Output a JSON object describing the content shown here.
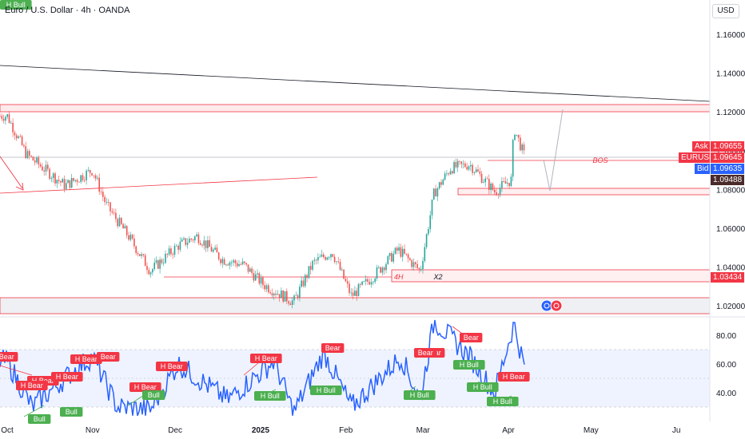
{
  "header": {
    "symbol_title": "Euro / U.S. Dollar · 4h · OANDA",
    "currency_button": "USD"
  },
  "price_axis": {
    "ticks": [
      "1.16000",
      "1.14000",
      "1.12000",
      "1.10000",
      "1.08000",
      "1.06000",
      "1.04000",
      "1.02000"
    ],
    "tags": {
      "ask_label": "Ask",
      "ask_value": "1.09655",
      "symbol_label": "EURUSD",
      "symbol_value": "1.09645",
      "bid_label": "Bid",
      "bid_value": "1.09635",
      "line_value": "1.09488",
      "zone_value": "1.03434"
    }
  },
  "osc_axis": {
    "ticks": [
      "80.00",
      "60.00",
      "40.00"
    ]
  },
  "time_axis": {
    "labels": [
      "Oct",
      "Nov",
      "Dec",
      "2025",
      "Feb",
      "Mar",
      "Apr",
      "May",
      "Ju"
    ]
  },
  "annotations": {
    "bos": "BOS",
    "tf_4h": "4H",
    "x2": "X2"
  },
  "divergence_labels": [
    {
      "text": "Bear",
      "kind": "bear"
    },
    {
      "text": "H Bear",
      "kind": "bear"
    },
    {
      "text": "H Bear",
      "kind": "bear"
    },
    {
      "text": "H Bear",
      "kind": "bear"
    },
    {
      "text": "H Bear",
      "kind": "bear"
    },
    {
      "text": "Bear",
      "kind": "bear"
    },
    {
      "text": "H Bear",
      "kind": "bear"
    },
    {
      "text": "H Bear",
      "kind": "bear"
    },
    {
      "text": "H Bear",
      "kind": "bear"
    },
    {
      "text": "Bear",
      "kind": "bear"
    },
    {
      "text": "Bear",
      "kind": "bear"
    },
    {
      "text": "Bear",
      "kind": "bear"
    },
    {
      "text": "Bear",
      "kind": "bear"
    },
    {
      "text": "H Bear",
      "kind": "bear"
    },
    {
      "text": "Bull",
      "kind": "bull"
    },
    {
      "text": "Bull",
      "kind": "bull"
    },
    {
      "text": "Bull",
      "kind": "bull"
    },
    {
      "text": "H Bull",
      "kind": "bull"
    },
    {
      "text": "H Bull",
      "kind": "bull"
    },
    {
      "text": "H Bull",
      "kind": "bull"
    },
    {
      "text": "H Bull",
      "kind": "bull"
    },
    {
      "text": "H Bull",
      "kind": "bull"
    },
    {
      "text": "H Bull",
      "kind": "bull"
    },
    {
      "text": "H Bull",
      "kind": "bull"
    }
  ],
  "colors": {
    "bull_candle": "#26a69a",
    "bear_candle": "#ef5350",
    "rsi_line": "#2962ff",
    "bear_label": "#f23645",
    "bull_label": "#4caf50",
    "zone": "#f23645"
  },
  "chart_data": [
    {
      "type": "candlestick",
      "title": "Euro / U.S. Dollar · 4h · OANDA",
      "ylim": [
        1.0135,
        1.1765
      ],
      "x_labels": [
        "Oct",
        "Nov",
        "Dec",
        "2025",
        "Feb",
        "Mar",
        "Apr",
        "May",
        "Ju"
      ],
      "approx_close_path": [
        {
          "date": "2024-10-01",
          "close": 1.118
        },
        {
          "date": "2024-10-08",
          "close": 1.098
        },
        {
          "date": "2024-10-15",
          "close": 1.09
        },
        {
          "date": "2024-10-22",
          "close": 1.082
        },
        {
          "date": "2024-11-01",
          "close": 1.09
        },
        {
          "date": "2024-11-06",
          "close": 1.072
        },
        {
          "date": "2024-11-14",
          "close": 1.056
        },
        {
          "date": "2024-11-22",
          "close": 1.038
        },
        {
          "date": "2024-12-02",
          "close": 1.051
        },
        {
          "date": "2024-12-09",
          "close": 1.056
        },
        {
          "date": "2024-12-18",
          "close": 1.044
        },
        {
          "date": "2024-12-26",
          "close": 1.041
        },
        {
          "date": "2025-01-02",
          "close": 1.031
        },
        {
          "date": "2025-01-13",
          "close": 1.022
        },
        {
          "date": "2025-01-20",
          "close": 1.042
        },
        {
          "date": "2025-01-27",
          "close": 1.048
        },
        {
          "date": "2025-02-03",
          "close": 1.025
        },
        {
          "date": "2025-02-10",
          "close": 1.034
        },
        {
          "date": "2025-02-20",
          "close": 1.049
        },
        {
          "date": "2025-02-28",
          "close": 1.038
        },
        {
          "date": "2025-03-05",
          "close": 1.078
        },
        {
          "date": "2025-03-11",
          "close": 1.091
        },
        {
          "date": "2025-03-18",
          "close": 1.093
        },
        {
          "date": "2025-03-27",
          "close": 1.079
        },
        {
          "date": "2025-04-02",
          "close": 1.085
        },
        {
          "date": "2025-04-03",
          "close": 1.112
        },
        {
          "date": "2025-04-07",
          "close": 1.0964
        }
      ],
      "horizontal_levels": [
        1.1215,
        1.0964,
        1.08,
        1.078,
        1.0385,
        1.034,
        1.0225,
        1.0155
      ],
      "projection": [
        {
          "date": "2025-04-08",
          "price": 1.08
        },
        {
          "date": "2025-04-17",
          "price": 1.122
        }
      ]
    },
    {
      "type": "line",
      "name": "RSI",
      "ylim": [
        23,
        98
      ],
      "yticks": [
        80,
        60,
        40
      ],
      "band": [
        30,
        70
      ],
      "approx_values": [
        {
          "date": "2024-10-01",
          "value": 62
        },
        {
          "date": "2024-10-10",
          "value": 30
        },
        {
          "date": "2024-10-25",
          "value": 55
        },
        {
          "date": "2024-11-01",
          "value": 65
        },
        {
          "date": "2024-11-10",
          "value": 30
        },
        {
          "date": "2024-11-22",
          "value": 28
        },
        {
          "date": "2024-12-02",
          "value": 60
        },
        {
          "date": "2024-12-20",
          "value": 35
        },
        {
          "date": "2025-01-06",
          "value": 62
        },
        {
          "date": "2025-01-13",
          "value": 26
        },
        {
          "date": "2025-01-24",
          "value": 68
        },
        {
          "date": "2025-02-03",
          "value": 30
        },
        {
          "date": "2025-02-21",
          "value": 65
        },
        {
          "date": "2025-02-28",
          "value": 35
        },
        {
          "date": "2025-03-05",
          "value": 90
        },
        {
          "date": "2025-03-18",
          "value": 65
        },
        {
          "date": "2025-03-27",
          "value": 40
        },
        {
          "date": "2025-04-03",
          "value": 88
        },
        {
          "date": "2025-04-07",
          "value": 56
        }
      ]
    }
  ]
}
